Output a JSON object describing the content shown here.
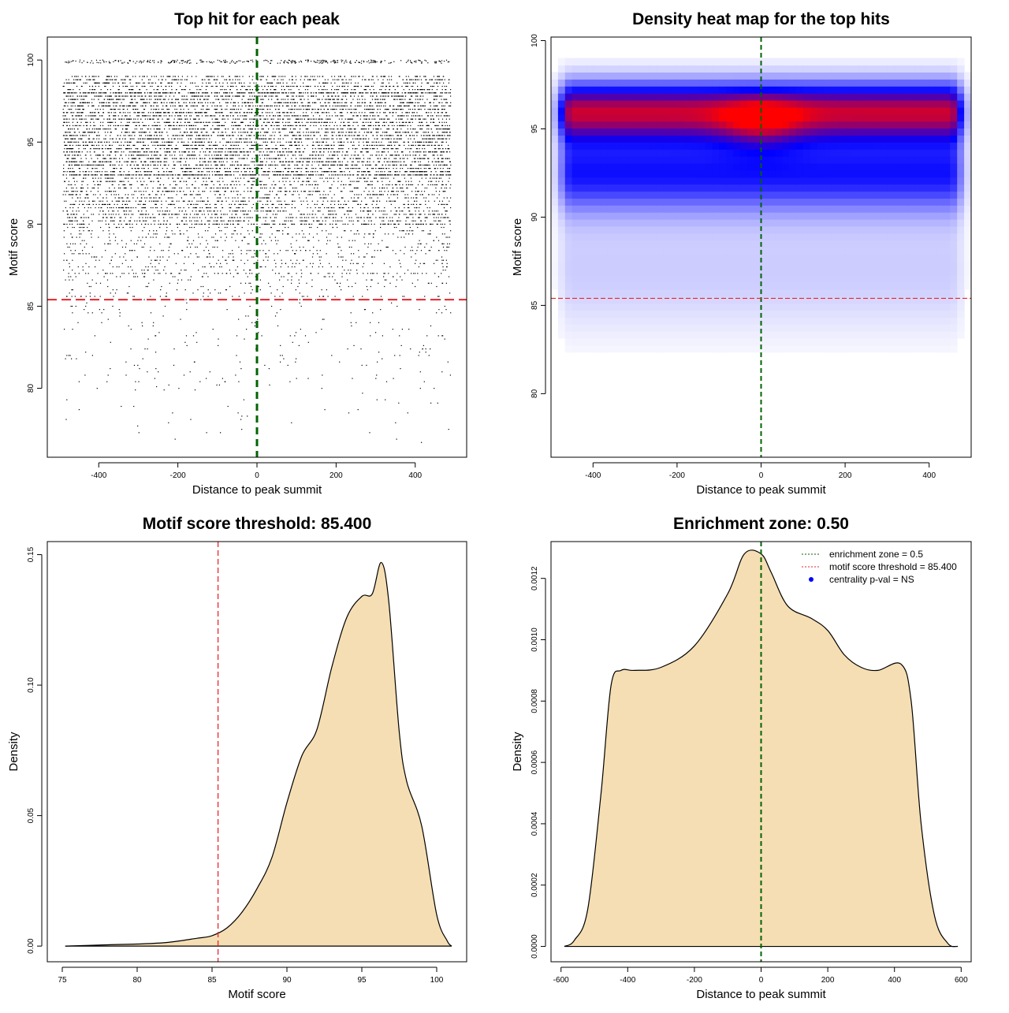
{
  "chart_data": [
    {
      "type": "scatter",
      "title": "Top hit for each peak",
      "xlabel": "Distance to peak summit",
      "ylabel": "Motif score",
      "xlim": [
        -530,
        530
      ],
      "ylim": [
        75.8,
        101.4
      ],
      "xticks": [
        -400,
        -200,
        0,
        200,
        400
      ],
      "yticks": [
        80,
        85,
        90,
        95,
        100
      ],
      "point_color": "#000000",
      "vline": {
        "x": 0,
        "color": "#006400",
        "style": "dashed"
      },
      "hline": {
        "y": 85.4,
        "color": "#e8242c",
        "style": "dashed"
      },
      "distribution": {
        "x_range": [
          -490,
          490
        ],
        "score_bands": [
          {
            "range": [
              99.8,
              100.0
            ],
            "count": 300
          },
          {
            "range": [
              98.0,
              99.0
            ],
            "count": 900
          },
          {
            "range": [
              93.0,
              98.0
            ],
            "count": 5600
          },
          {
            "range": [
              90.0,
              93.0
            ],
            "count": 2100
          },
          {
            "range": [
              87.0,
              90.0
            ],
            "count": 750
          },
          {
            "range": [
              85.4,
              87.0
            ],
            "count": 250
          },
          {
            "range": [
              80.0,
              85.4
            ],
            "count": 220
          },
          {
            "range": [
              76.5,
              80.0
            ],
            "count": 40
          }
        ]
      }
    },
    {
      "type": "heatmap",
      "title": "Density heat map for the top hits",
      "xlabel": "Distance to peak summit",
      "ylabel": "Motif score",
      "xlim": [
        -500,
        500
      ],
      "ylim": [
        76.4,
        100.2
      ],
      "xticks": [
        -400,
        -200,
        0,
        200,
        400
      ],
      "yticks": [
        80,
        85,
        90,
        95,
        100
      ],
      "colors": {
        "low": "#ffffff",
        "mid": "#0000ff",
        "high": "#ff0000"
      },
      "vline": {
        "x": 0,
        "color": "#006400",
        "style": "dashed"
      },
      "hline": {
        "y": 85.4,
        "color": "#e8242c",
        "style": "dashed"
      }
    },
    {
      "type": "area",
      "title": "Motif score threshold: 85.400",
      "xlabel": "Motif score",
      "ylabel": "Density",
      "xlim": [
        74,
        102
      ],
      "ylim": [
        -0.006,
        0.155
      ],
      "xticks": [
        75,
        80,
        85,
        90,
        95,
        100
      ],
      "yticks": [
        0.0,
        0.05,
        0.1,
        0.15
      ],
      "ytick_labels": [
        "0.00",
        "0.05",
        "0.10",
        "0.15"
      ],
      "fill_color": "#f5deb3",
      "vline": {
        "x": 85.4,
        "color": "#e8242c",
        "style": "dashed"
      },
      "x": [
        75.2,
        78,
        80,
        82,
        84,
        85,
        86,
        87,
        88,
        89,
        90,
        91,
        92,
        93,
        94,
        95,
        95.7,
        96.3,
        96.8,
        97.5,
        98,
        99,
        100,
        100.7,
        101
      ],
      "y": [
        0.0,
        0.0005,
        0.0008,
        0.0014,
        0.003,
        0.004,
        0.007,
        0.013,
        0.022,
        0.034,
        0.055,
        0.073,
        0.083,
        0.107,
        0.126,
        0.134,
        0.135,
        0.147,
        0.132,
        0.082,
        0.063,
        0.046,
        0.012,
        0.002,
        0.0
      ]
    },
    {
      "type": "area",
      "title": "Enrichment zone: 0.50",
      "xlabel": "Distance to peak summit",
      "ylabel": "Density",
      "xlim": [
        -630,
        630
      ],
      "ylim": [
        -5e-05,
        0.00132
      ],
      "xticks": [
        -600,
        -400,
        -200,
        0,
        200,
        400,
        600
      ],
      "yticks": [
        0.0,
        0.0002,
        0.0004,
        0.0006,
        0.0008,
        0.001,
        0.0012
      ],
      "ytick_labels": [
        "0.0000",
        "0.0002",
        "0.0004",
        "0.0006",
        "0.0008",
        "0.0010",
        "0.0012"
      ],
      "fill_color": "#f5deb3",
      "vline": {
        "x": 0,
        "color": "#006400",
        "style": "dashed"
      },
      "x": [
        -590,
        -560,
        -520,
        -480,
        -450,
        -420,
        -380,
        -300,
        -200,
        -100,
        -50,
        0,
        30,
        80,
        150,
        200,
        250,
        300,
        350,
        420,
        450,
        480,
        520,
        560,
        590
      ],
      "y": [
        0.0,
        2e-05,
        0.00012,
        0.0005,
        0.00085,
        0.0009,
        0.0009,
        0.00091,
        0.00098,
        0.00115,
        0.00128,
        0.00128,
        0.00122,
        0.00111,
        0.00107,
        0.00103,
        0.00095,
        0.00091,
        0.0009,
        0.00092,
        0.0008,
        0.0004,
        0.0001,
        1e-05,
        0.0
      ],
      "legend": [
        {
          "label": "enrichment zone = 0.5",
          "color": "#006400",
          "style": "dotted-line"
        },
        {
          "label": "motif score threshold = 85.400",
          "color": "#e8242c",
          "style": "dotted-line"
        },
        {
          "label": "centrality p-val = NS",
          "color": "#0000ff",
          "style": "dot"
        }
      ],
      "legend_position": "top-right"
    }
  ]
}
